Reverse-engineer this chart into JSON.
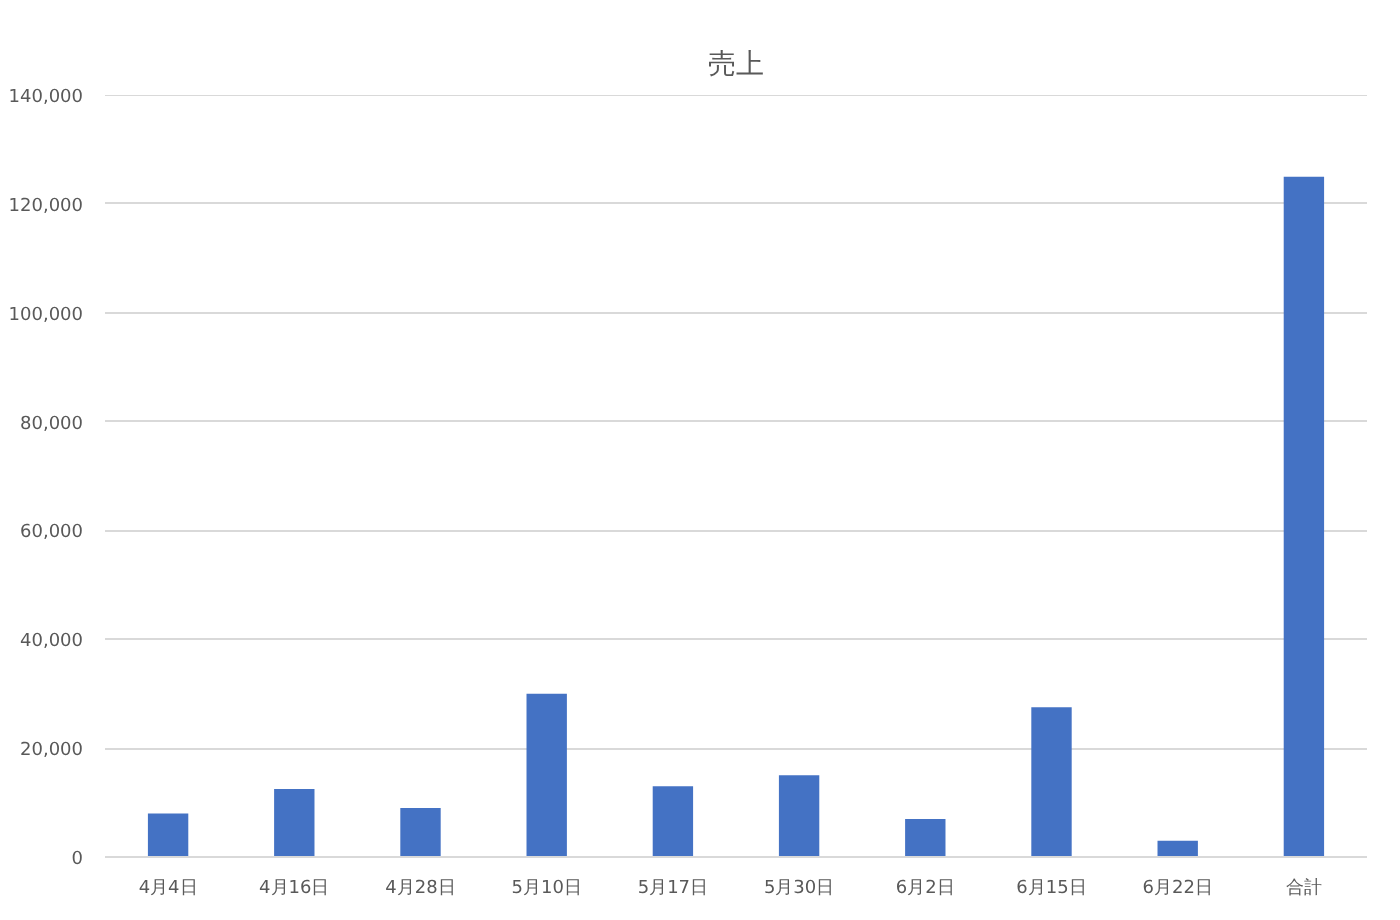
{
  "chart_data": {
    "type": "bar",
    "title": "売上",
    "categories": [
      "4月4日",
      "4月16日",
      "4月28日",
      "5月10日",
      "5月17日",
      "5月30日",
      "6月2日",
      "6月15日",
      "6月22日",
      "合計"
    ],
    "values": [
      8000,
      12500,
      9000,
      30000,
      13000,
      15000,
      7000,
      27500,
      3000,
      125000
    ],
    "color": "#4472c4",
    "ylim": [
      0,
      140000
    ],
    "yticks": [
      {
        "value": 0,
        "label": "0"
      },
      {
        "value": 20000,
        "label": "20,000"
      },
      {
        "value": 40000,
        "label": "40,000"
      },
      {
        "value": 60000,
        "label": "60,000"
      },
      {
        "value": 80000,
        "label": "80,000"
      },
      {
        "value": 100000,
        "label": "100,000"
      },
      {
        "value": 120000,
        "label": "120,000"
      },
      {
        "value": 140000,
        "label": "140,000"
      }
    ],
    "grid": "y"
  }
}
